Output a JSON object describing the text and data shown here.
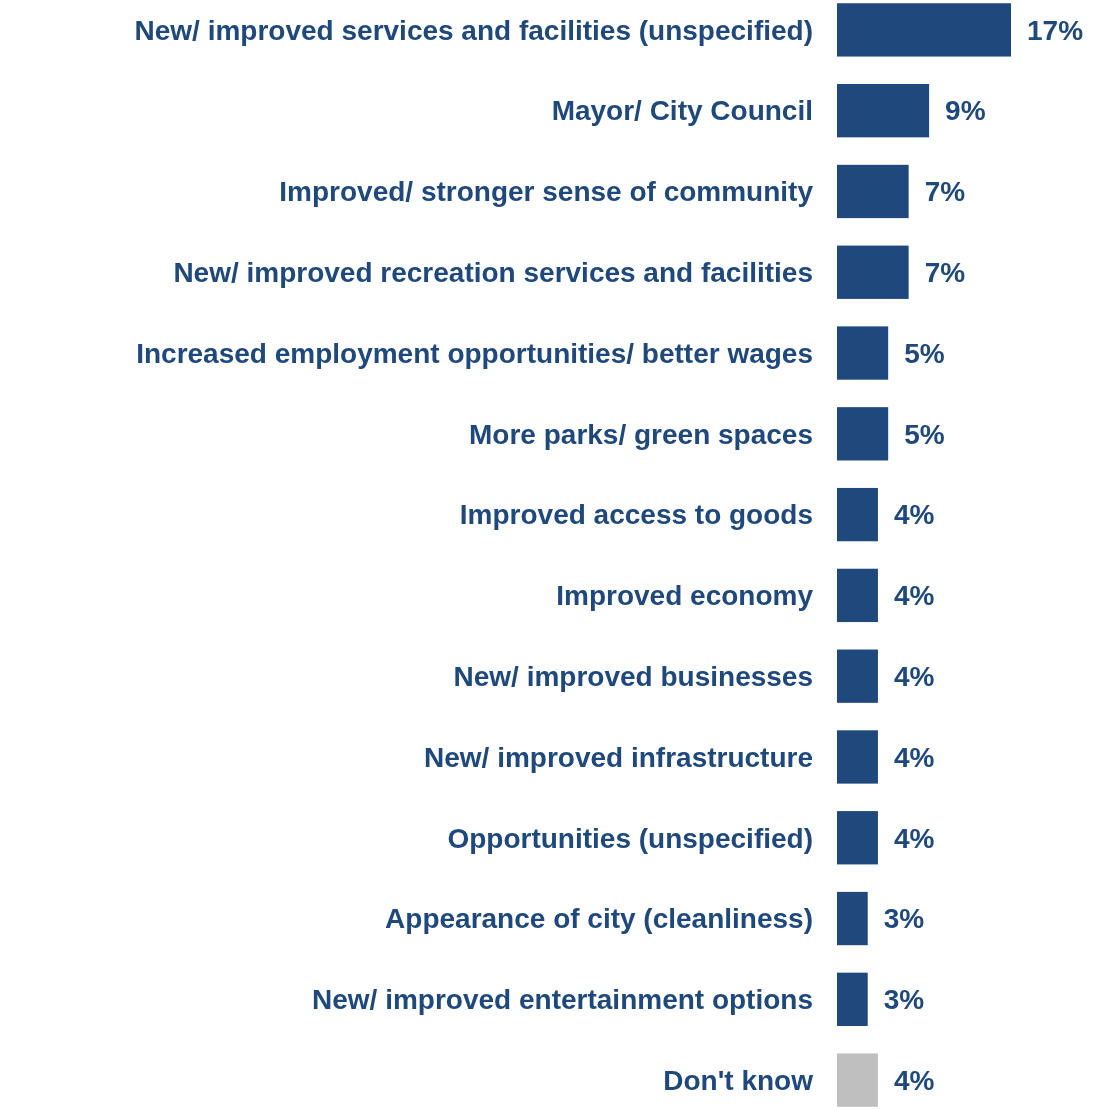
{
  "chart_data": {
    "type": "bar",
    "orientation": "horizontal",
    "categories": [
      "New/ improved services and facilities (unspecified)",
      "Mayor/ City Council",
      "Improved/ stronger sense of community",
      "New/ improved recreation services and facilities",
      "Increased employment opportunities/ better wages",
      "More parks/ green spaces",
      "Improved access to goods",
      "Improved economy",
      "New/ improved businesses",
      "New/ improved infrastructure",
      "Opportunities (unspecified)",
      "Appearance of city (cleanliness)",
      "New/ improved entertainment options",
      "Don't know"
    ],
    "values": [
      17,
      9,
      7,
      7,
      5,
      5,
      4,
      4,
      4,
      4,
      4,
      3,
      3,
      4
    ],
    "value_labels": [
      "17%",
      "9%",
      "7%",
      "7%",
      "5%",
      "5%",
      "4%",
      "4%",
      "4%",
      "4%",
      "4%",
      "3%",
      "3%",
      "4%"
    ],
    "colors": [
      "#1f497d",
      "#1f497d",
      "#1f497d",
      "#1f497d",
      "#1f497d",
      "#1f497d",
      "#1f497d",
      "#1f497d",
      "#1f497d",
      "#1f497d",
      "#1f497d",
      "#1f497d",
      "#1f497d",
      "#bfbfbf"
    ]
  }
}
